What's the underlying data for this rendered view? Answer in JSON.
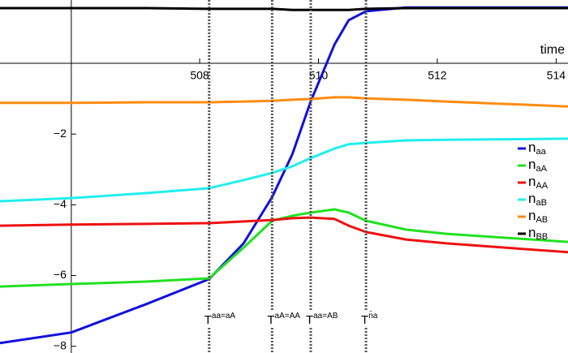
{
  "chart_data": {
    "type": "line",
    "x_label": "time",
    "x": [
      504.64,
      505.84,
      507.1,
      508.16,
      508.74,
      509.22,
      509.56,
      509.87,
      510.27,
      510.51,
      510.8,
      511.47,
      512.15,
      514.2
    ],
    "series": [
      {
        "name": "n",
        "subscript": "aa",
        "color": "#1010dd",
        "values": [
          -7.91,
          -7.61,
          -6.81,
          -6.1,
          -5.09,
          -3.78,
          -2.57,
          -1.08,
          0.53,
          1.22,
          1.47,
          1.58,
          1.58,
          1.58
        ]
      },
      {
        "name": "n",
        "subscript": "aA",
        "color": "#22e022",
        "values": [
          -6.31,
          -6.24,
          -6.17,
          -6.08,
          -5.21,
          -4.45,
          -4.31,
          -4.22,
          -4.13,
          -4.22,
          -4.45,
          -4.7,
          -4.82,
          -5.05
        ]
      },
      {
        "name": "n",
        "subscript": "AA",
        "color": "#ee1111",
        "values": [
          -4.59,
          -4.56,
          -4.54,
          -4.52,
          -4.47,
          -4.43,
          -4.38,
          -4.36,
          -4.4,
          -4.59,
          -4.77,
          -4.98,
          -5.09,
          -5.34
        ]
      },
      {
        "name": "n",
        "subscript": "aB",
        "color": "#22eeee",
        "values": [
          -3.9,
          -3.81,
          -3.67,
          -3.53,
          -3.3,
          -3.1,
          -2.91,
          -2.68,
          -2.41,
          -2.29,
          -2.25,
          -2.18,
          -2.16,
          -2.13
        ]
      },
      {
        "name": "n",
        "subscript": "AB",
        "color": "#ff8c10",
        "values": [
          -1.12,
          -1.12,
          -1.1,
          -1.1,
          -1.08,
          -1.06,
          -1.03,
          -1.01,
          -0.96,
          -0.96,
          -0.99,
          -1.03,
          -1.08,
          -1.22
        ]
      },
      {
        "name": "n",
        "subscript": "BB",
        "color": "#000000",
        "values": [
          1.56,
          1.56,
          1.56,
          1.54,
          1.54,
          1.54,
          1.51,
          1.51,
          1.51,
          1.51,
          1.54,
          1.56,
          1.56,
          1.56
        ]
      }
    ],
    "xlim": [
      504.64,
      514.2
    ],
    "ylim": [
      -8.19,
      1.79
    ],
    "xticks": [
      508,
      510,
      512,
      514
    ],
    "yticks": [
      {
        "value": -2,
        "label": "−2"
      },
      {
        "value": -4,
        "label": "−4"
      },
      {
        "value": -6,
        "label": "−6"
      },
      {
        "value": -8,
        "label": "−8"
      }
    ],
    "axes_origin": [
      505.84,
      0
    ],
    "legend": "right",
    "markers": [
      {
        "x": 508.16,
        "label": "T",
        "sup": "aa=aA"
      },
      {
        "x": 509.22,
        "label": "T",
        "sup": "aA=AA"
      },
      {
        "x": 509.87,
        "label": "T",
        "sup": "aa=AB"
      },
      {
        "x": 510.8,
        "label": "T",
        "sup": "n̄a"
      }
    ]
  }
}
